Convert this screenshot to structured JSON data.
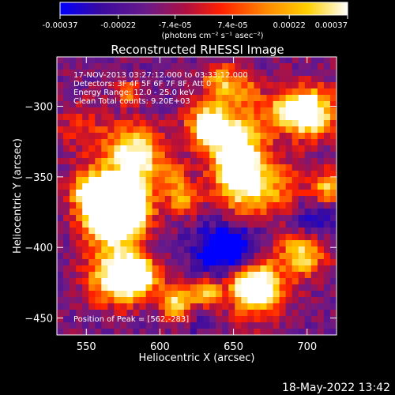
{
  "chart_data": {
    "type": "heatmap",
    "title": "Reconstructed RHESSI Image",
    "xlabel": "Heliocentric X (arcsec)",
    "ylabel": "Heliocentric Y (arcsec)",
    "xlim": [
      530,
      720
    ],
    "ylim": [
      -462,
      -265
    ],
    "x_ticks": [
      550,
      600,
      650,
      700
    ],
    "y_ticks": [
      -300,
      -350,
      -400,
      -450
    ],
    "colorbar": {
      "range": [
        -0.00037,
        0.00037
      ],
      "tick_values": [
        -0.00037,
        -0.00022,
        -7.4e-05,
        7.4e-05,
        0.00022,
        0.00037
      ],
      "tick_labels": [
        "-0.00037",
        "-0.00022",
        "-7.4e-05",
        "7.4e-05",
        "0.00022",
        "0.00037"
      ],
      "unit_label": "(photons cm⁻² s⁻¹ asec⁻²)",
      "colors": [
        "#0000ff",
        "#5a1aa8",
        "#7a2080",
        "#c8102a",
        "#ff4a00",
        "#ffb000",
        "#ffff70",
        "#ffffff"
      ]
    },
    "peak": [
      562,
      -283
    ],
    "grid": false
  },
  "annotations": {
    "line1": "17-NOV-2013 03:27:12.000 to 03:33:12.000",
    "line2": "Detectors: 3F 4F 5F 6F 7F 8F, Att 0",
    "line3": "Energy Range: 12.0 - 25.0 keV",
    "line4": "Clean     Total counts: 9.20E+03",
    "peak_text": "Position of Peak = [562,-283]"
  },
  "footer_timestamp": "18-May-2022 13:42"
}
